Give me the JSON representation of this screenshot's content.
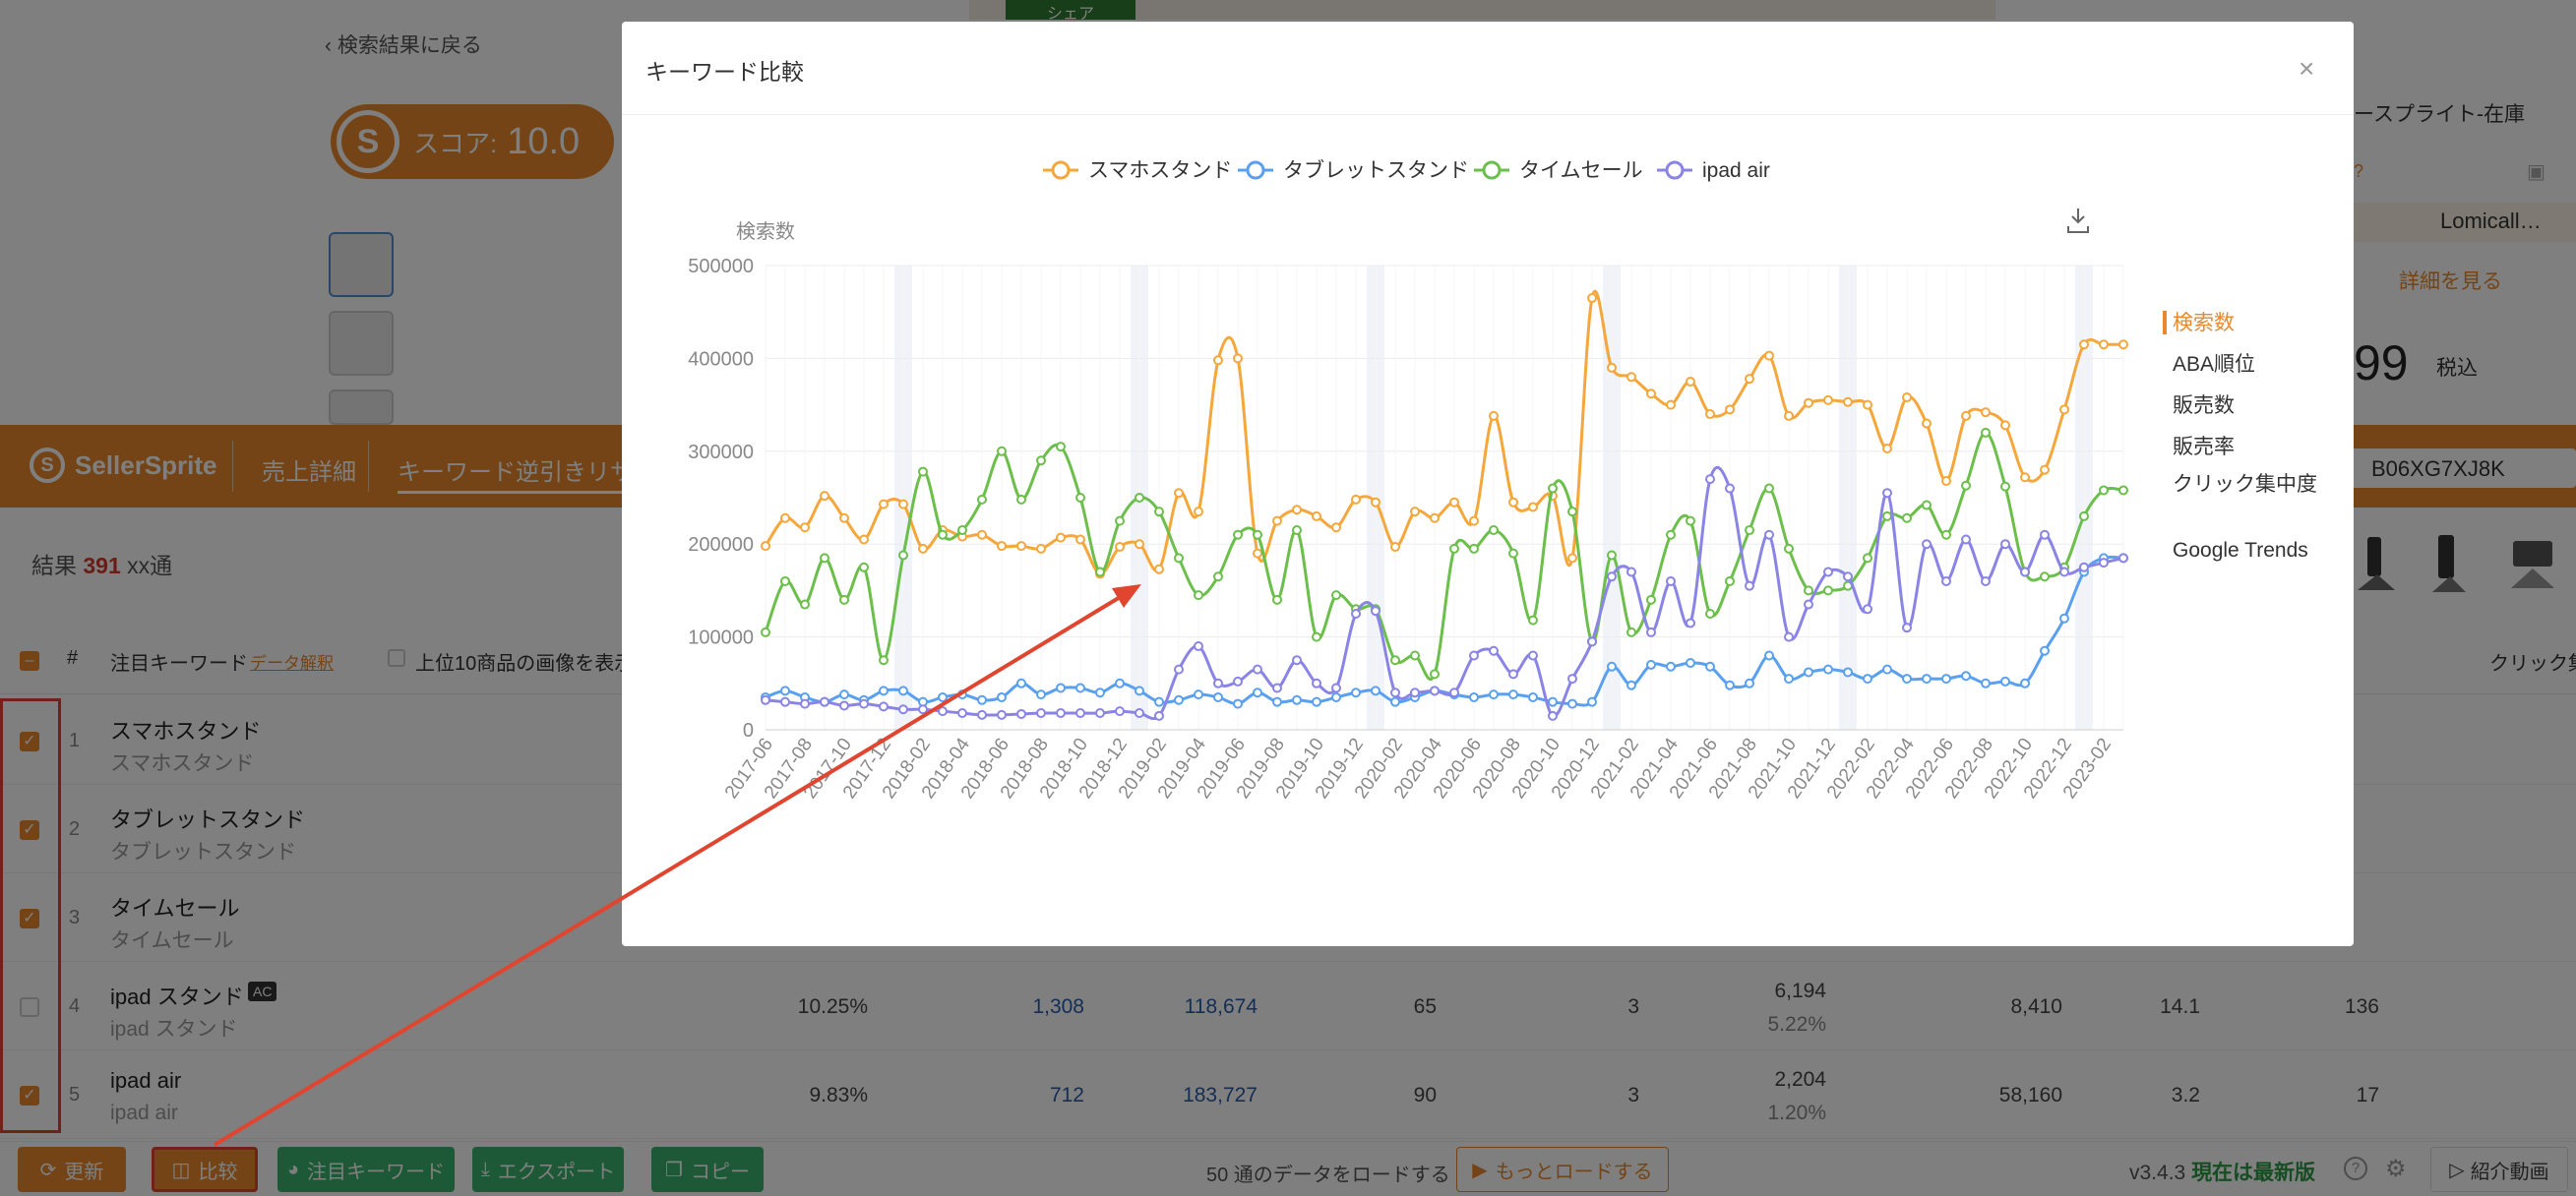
{
  "background": {
    "back_link": "‹ 検索結果に戻る",
    "score_logo": "S",
    "score_label": "スコア:",
    "score_value": "10.0",
    "green_tab": "シェア",
    "right_title": "ースプライト-在庫",
    "right_brand": "Lomicall…",
    "right_detail": "詳細を見る",
    "right_price": "99",
    "right_tax": "税込",
    "right_q_icon": "?",
    "right_camera_icon": "▣"
  },
  "nav": {
    "brand": "SellerSprite",
    "brand_logo": "S",
    "tab_sales": "売上詳細",
    "tab_keyword": "キーワード逆引きリサーチ",
    "asin": "B06XG7XJ8K"
  },
  "results": {
    "prefix": "結果",
    "count": "391",
    "suffix": "xx通"
  },
  "table": {
    "header_hash": "#",
    "header_keyword": "注目キーワード",
    "header_data_help": "データ解釈",
    "header_top10": "上位10商品の画像を表示",
    "header_click": "クリック集",
    "rows": [
      {
        "num": "1",
        "kw": "スマホスタンド",
        "kw_sub": "スマホスタンド",
        "checked": true
      },
      {
        "num": "2",
        "kw": "タブレットスタンド",
        "kw_sub": "タブレットスタンド",
        "checked": true
      },
      {
        "num": "3",
        "kw": "タイムセール",
        "kw_sub": "タイムセール",
        "checked": true
      },
      {
        "num": "4",
        "kw": "ipad スタンド",
        "badge": "AC",
        "kw_sub": "ipad スタンド",
        "checked": false,
        "c1": "10.25%",
        "c2": "1,308",
        "c3": "118,674",
        "c4": "65",
        "c5": "3",
        "c6": "6,194",
        "c6b": "5.22%",
        "c7": "8,410",
        "c8": "14.1",
        "c9": "136"
      },
      {
        "num": "5",
        "kw": "ipad air",
        "kw_sub": "ipad air",
        "checked": true,
        "c1": "9.83%",
        "c2": "712",
        "c3": "183,727",
        "c4": "90",
        "c5": "3",
        "c6": "2,204",
        "c6b": "1.20%",
        "c7": "58,160",
        "c8": "3.2",
        "c9": "17"
      }
    ]
  },
  "footer": {
    "update": "更新",
    "compare": "比较",
    "keyword": "注目キーワード",
    "export": "エクスポート",
    "copy": "コピー",
    "load_text": "50 通のデータをロードする",
    "load_more": "もっとロードする",
    "version": "v3.4.3",
    "version_status": "現在は最新版",
    "video": "紹介動画",
    "help_icon": "?",
    "gear_icon": "⚙"
  },
  "modal": {
    "title": "キーワード比較",
    "close_icon": "×",
    "side_menu": [
      "検索数",
      "ABA順位",
      "販売数",
      "販売率",
      "クリック集中度",
      "Google Trends"
    ],
    "side_active": 0
  },
  "colors": {
    "accent": "#e8892d",
    "series": [
      "#f5a73b",
      "#5aa0f0",
      "#6bbf4a",
      "#8a84e6"
    ]
  },
  "chart_data": {
    "type": "line",
    "ylabel": "検索数",
    "ylim": [
      0,
      500000
    ],
    "yticks": [
      "500000",
      "400000",
      "300000",
      "200000",
      "100000",
      "0"
    ],
    "x": [
      "2017-06",
      "2017-07",
      "2017-08",
      "2017-09",
      "2017-10",
      "2017-11",
      "2017-12",
      "2018-01",
      "2018-02",
      "2018-03",
      "2018-04",
      "2018-05",
      "2018-06",
      "2018-07",
      "2018-08",
      "2018-09",
      "2018-10",
      "2018-11",
      "2018-12",
      "2019-01",
      "2019-02",
      "2019-03",
      "2019-04",
      "2019-05",
      "2019-06",
      "2019-07",
      "2019-08",
      "2019-09",
      "2019-10",
      "2019-11",
      "2019-12",
      "2020-01",
      "2020-02",
      "2020-03",
      "2020-04",
      "2020-05",
      "2020-06",
      "2020-07",
      "2020-08",
      "2020-09",
      "2020-10",
      "2020-11",
      "2020-12",
      "2021-01",
      "2021-02",
      "2021-03",
      "2021-04",
      "2021-05",
      "2021-06",
      "2021-07",
      "2021-08",
      "2021-09",
      "2021-10",
      "2021-11",
      "2021-12",
      "2022-01",
      "2022-02",
      "2022-03",
      "2022-04",
      "2022-05",
      "2022-06",
      "2022-07",
      "2022-08",
      "2022-09",
      "2022-10",
      "2022-11",
      "2022-12",
      "2023-01",
      "2023-02",
      "2023-03"
    ],
    "xticks": [
      "2017-06",
      "2017-08",
      "2017-10",
      "2017-12",
      "2018-02",
      "2018-04",
      "2018-06",
      "2018-08",
      "2018-10",
      "2018-12",
      "2019-02",
      "2019-04",
      "2019-06",
      "2019-08",
      "2019-10",
      "2019-12",
      "2020-02",
      "2020-04",
      "2020-06",
      "2020-08",
      "2020-10",
      "2020-12",
      "2021-02",
      "2021-04",
      "2021-06",
      "2021-08",
      "2021-10",
      "2021-12",
      "2022-02",
      "2022-04",
      "2022-06",
      "2022-08",
      "2022-10",
      "2022-12",
      "2023-02"
    ],
    "series": [
      {
        "name": "スマホスタンド",
        "values": [
          198000,
          228000,
          218000,
          252000,
          228000,
          205000,
          243000,
          243000,
          195000,
          215000,
          208000,
          210000,
          198000,
          198000,
          195000,
          207000,
          205000,
          168000,
          197000,
          200000,
          173000,
          255000,
          235000,
          398000,
          400000,
          190000,
          225000,
          237000,
          230000,
          218000,
          248000,
          245000,
          197000,
          235000,
          228000,
          245000,
          225000,
          338000,
          245000,
          240000,
          252000,
          185000,
          465000,
          390000,
          380000,
          362000,
          350000,
          375000,
          340000,
          345000,
          378000,
          403000,
          338000,
          352000,
          355000,
          353000,
          350000,
          303000,
          358000,
          330000,
          268000,
          338000,
          342000,
          328000,
          272000,
          280000,
          345000,
          415000,
          415000,
          415000
        ]
      },
      {
        "name": "タブレットスタンド",
        "values": [
          35000,
          42000,
          35000,
          30000,
          38000,
          32000,
          42000,
          42000,
          30000,
          35000,
          38000,
          32000,
          35000,
          50000,
          38000,
          45000,
          45000,
          40000,
          50000,
          42000,
          30000,
          32000,
          38000,
          35000,
          28000,
          40000,
          30000,
          32000,
          30000,
          35000,
          40000,
          42000,
          30000,
          35000,
          42000,
          38000,
          35000,
          38000,
          38000,
          35000,
          30000,
          28000,
          30000,
          68000,
          48000,
          70000,
          68000,
          72000,
          68000,
          48000,
          50000,
          80000,
          55000,
          62000,
          65000,
          62000,
          55000,
          65000,
          55000,
          55000,
          55000,
          58000,
          50000,
          52000,
          50000,
          85000,
          120000,
          170000,
          185000,
          185000
        ]
      },
      {
        "name": "タイムセール",
        "values": [
          105000,
          160000,
          135000,
          185000,
          140000,
          175000,
          75000,
          188000,
          278000,
          210000,
          215000,
          248000,
          300000,
          248000,
          290000,
          305000,
          250000,
          170000,
          225000,
          250000,
          235000,
          185000,
          145000,
          165000,
          210000,
          210000,
          140000,
          215000,
          100000,
          145000,
          130000,
          130000,
          75000,
          80000,
          60000,
          195000,
          195000,
          215000,
          190000,
          118000,
          260000,
          235000,
          95000,
          188000,
          105000,
          140000,
          210000,
          225000,
          125000,
          160000,
          215000,
          260000,
          195000,
          150000,
          150000,
          155000,
          185000,
          230000,
          228000,
          242000,
          210000,
          263000,
          320000,
          262000,
          170000,
          165000,
          175000,
          230000,
          258000,
          258000
        ]
      },
      {
        "name": "ipad air",
        "values": [
          32000,
          30000,
          28000,
          30000,
          26000,
          28000,
          25000,
          22000,
          22000,
          20000,
          18000,
          16000,
          16000,
          17000,
          18000,
          18000,
          18000,
          18000,
          20000,
          18000,
          15000,
          65000,
          90000,
          50000,
          52000,
          65000,
          45000,
          75000,
          50000,
          45000,
          125000,
          128000,
          40000,
          40000,
          42000,
          40000,
          80000,
          85000,
          60000,
          80000,
          15000,
          55000,
          95000,
          165000,
          170000,
          105000,
          160000,
          115000,
          270000,
          260000,
          155000,
          210000,
          100000,
          135000,
          170000,
          165000,
          130000,
          255000,
          110000,
          200000,
          160000,
          205000,
          160000,
          200000,
          170000,
          210000,
          170000,
          175000,
          180000,
          185000
        ]
      }
    ]
  }
}
